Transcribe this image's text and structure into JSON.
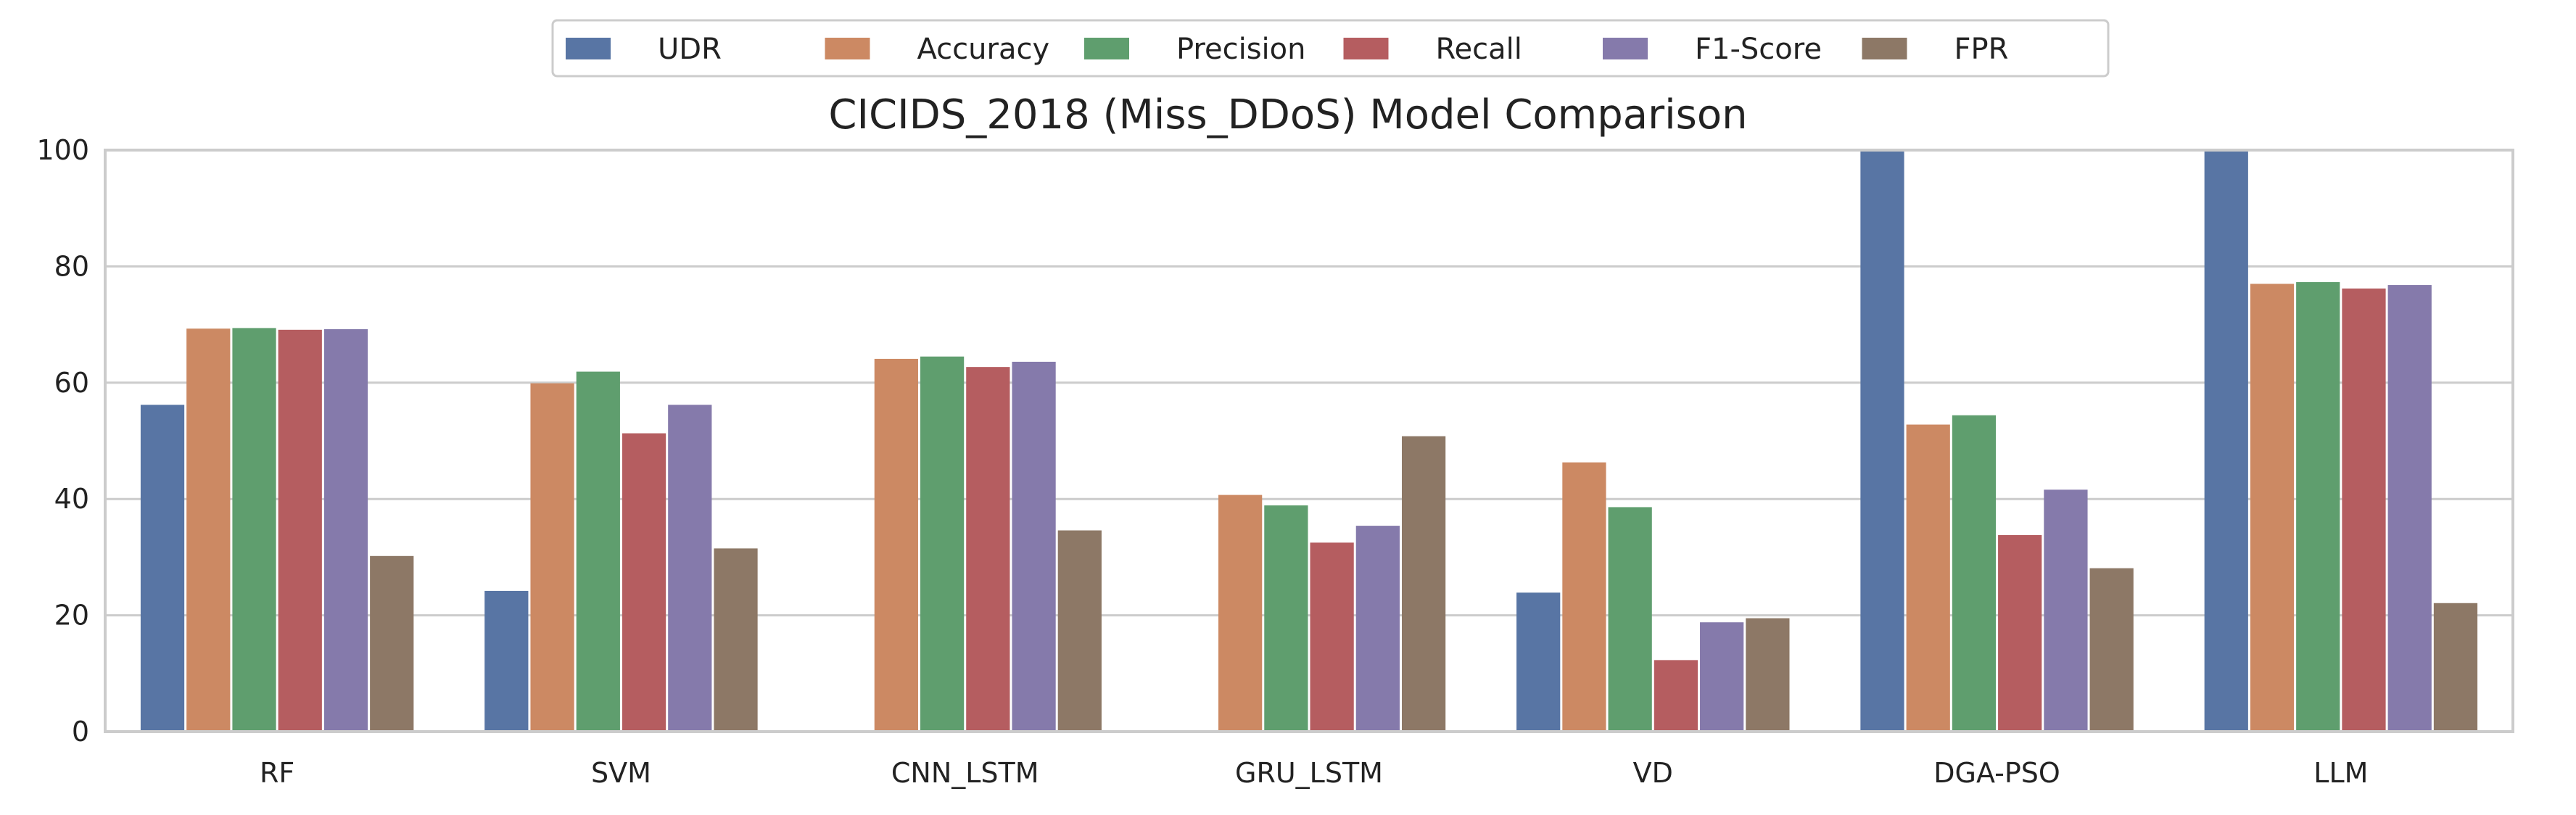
{
  "chart_data": {
    "type": "bar",
    "title": "CICIDS_2018 (Miss_DDoS) Model Comparison",
    "xlabel": "",
    "ylabel": "",
    "ylim": [
      0,
      100
    ],
    "yticks": [
      0,
      20,
      40,
      60,
      80,
      100
    ],
    "grid": "horizontal",
    "legend_placement": "top-center",
    "categories": [
      "RF",
      "SVM",
      "CNN_LSTM",
      "GRU_LSTM",
      "VD",
      "DGA-PSO",
      "LLM"
    ],
    "series": [
      {
        "name": "UDR",
        "color": "#5875a4",
        "values": [
          56.2,
          24.2,
          0,
          0,
          23.9,
          99.8,
          99.9
        ]
      },
      {
        "name": "Accuracy",
        "color": "#cc8963",
        "values": [
          69.3,
          59.9,
          64.1,
          40.7,
          46.3,
          52.8,
          77.0
        ]
      },
      {
        "name": "Precision",
        "color": "#5f9e6e",
        "values": [
          69.4,
          61.9,
          64.5,
          38.9,
          38.6,
          54.4,
          77.3
        ]
      },
      {
        "name": "Recall",
        "color": "#b55d60",
        "values": [
          69.1,
          51.3,
          62.7,
          32.5,
          12.3,
          33.8,
          76.2
        ]
      },
      {
        "name": "F1-Score",
        "color": "#857aab",
        "values": [
          69.2,
          56.2,
          63.6,
          35.4,
          18.8,
          41.6,
          76.8
        ]
      },
      {
        "name": "FPR",
        "color": "#8d7866",
        "values": [
          30.2,
          31.5,
          34.6,
          50.8,
          19.5,
          28.1,
          22.1
        ]
      }
    ]
  }
}
